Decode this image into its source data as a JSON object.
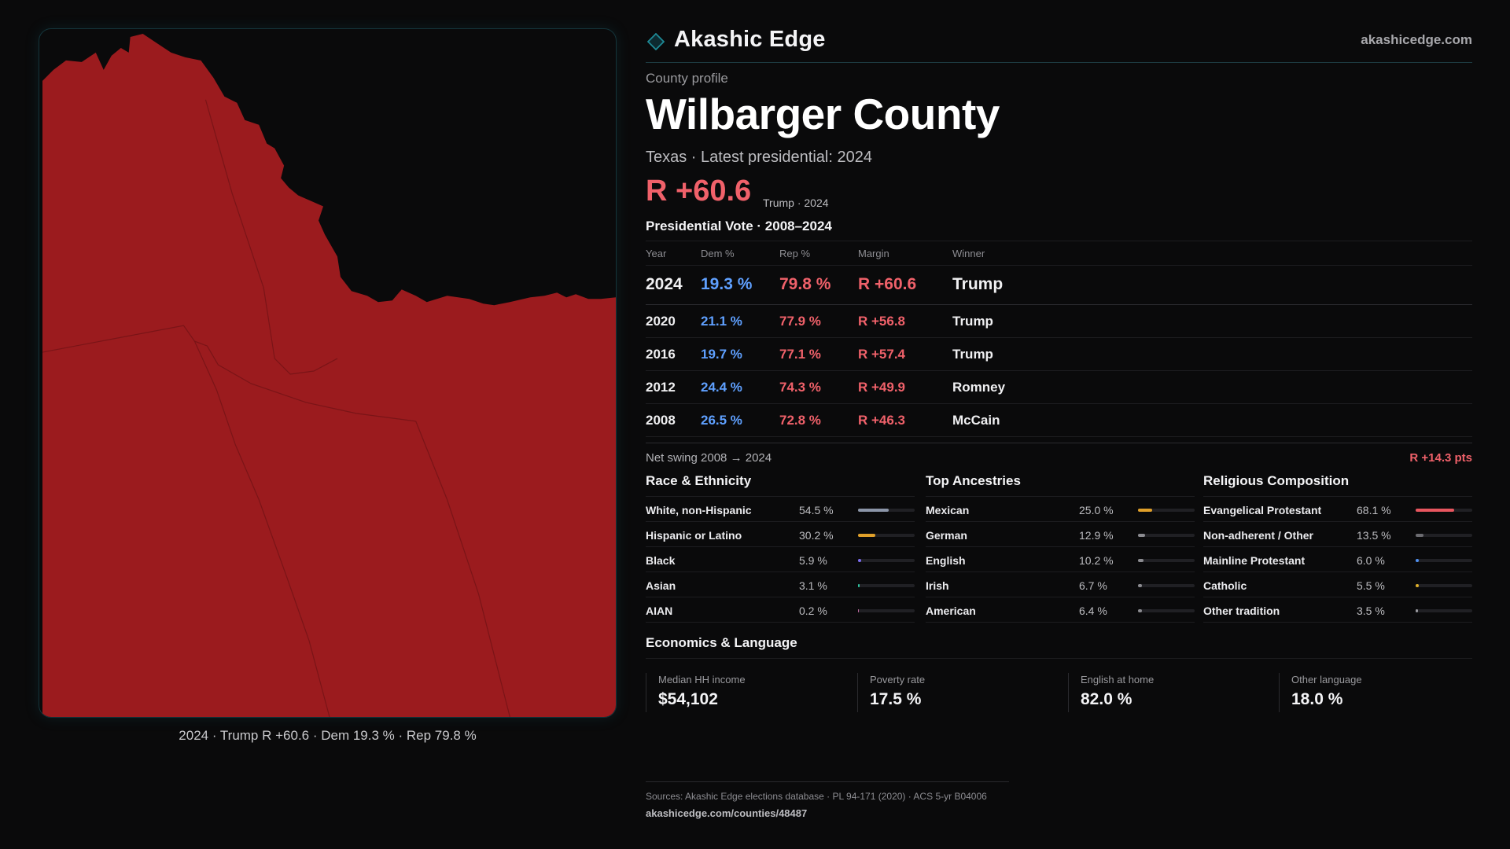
{
  "map": {
    "caption": "2024 · Trump R +60.6 · Dem 19.3 % · Rep 79.8 %",
    "fill_color": "#9b1b1e"
  },
  "header": {
    "brand": "Akashic Edge",
    "site": "akashicedge.com",
    "logo_icon": "diamond-icon"
  },
  "profile": {
    "kicker": "County profile",
    "title": "Wilbarger County",
    "subtitle": "Texas · Latest presidential: 2024",
    "margin": "R +60.6",
    "margin_note": "Trump · 2024"
  },
  "vote": {
    "section_title": "Presidential Vote · 2008–2024",
    "columns": [
      "Year",
      "Dem %",
      "Rep %",
      "Margin",
      "Winner"
    ],
    "rows": [
      {
        "year": "2024",
        "dem": "19.3 %",
        "rep": "79.8 %",
        "margin": "R +60.6",
        "winner": "Trump"
      },
      {
        "year": "2020",
        "dem": "21.1 %",
        "rep": "77.9 %",
        "margin": "R +56.8",
        "winner": "Trump"
      },
      {
        "year": "2016",
        "dem": "19.7 %",
        "rep": "77.1 %",
        "margin": "R +57.4",
        "winner": "Trump"
      },
      {
        "year": "2012",
        "dem": "24.4 %",
        "rep": "74.3 %",
        "margin": "R +49.9",
        "winner": "Romney"
      },
      {
        "year": "2008",
        "dem": "26.5 %",
        "rep": "72.8 %",
        "margin": "R +46.3",
        "winner": "McCain"
      }
    ],
    "swing_label": "Net swing 2008 → 2024",
    "swing_value": "R +14.3 pts",
    "dem_color": "#5fa0ff",
    "rep_color": "#f0616a"
  },
  "race": {
    "title": "Race & Ethnicity",
    "rows": [
      {
        "label": "White, non-Hispanic",
        "value": "54.5 %",
        "share": 0.545,
        "color": "#8b95a8"
      },
      {
        "label": "Hispanic or Latino",
        "value": "30.2 %",
        "share": 0.302,
        "color": "#e0a02a"
      },
      {
        "label": "Black",
        "value": "5.9 %",
        "share": 0.059,
        "color": "#7b6cf0"
      },
      {
        "label": "Asian",
        "value": "3.1 %",
        "share": 0.031,
        "color": "#2ec4a0"
      },
      {
        "label": "AIAN",
        "value": "0.2 %",
        "share": 0.002,
        "color": "#c06aa0"
      }
    ]
  },
  "ancestry": {
    "title": "Top Ancestries",
    "rows": [
      {
        "label": "Mexican",
        "value": "25.0 %",
        "share": 0.25,
        "color": "#e0a02a"
      },
      {
        "label": "German",
        "value": "12.9 %",
        "share": 0.129,
        "color": "#8b8b90"
      },
      {
        "label": "English",
        "value": "10.2 %",
        "share": 0.102,
        "color": "#8b8b90"
      },
      {
        "label": "Irish",
        "value": "6.7 %",
        "share": 0.067,
        "color": "#8b8b90"
      },
      {
        "label": "American",
        "value": "6.4 %",
        "share": 0.064,
        "color": "#8b8b90"
      }
    ]
  },
  "religion": {
    "title": "Religious Composition",
    "rows": [
      {
        "label": "Evangelical Protestant",
        "value": "68.1 %",
        "share": 0.681,
        "color": "#e8565f"
      },
      {
        "label": "Non-adherent / Other",
        "value": "13.5 %",
        "share": 0.135,
        "color": "#6b6b70"
      },
      {
        "label": "Mainline Protestant",
        "value": "6.0 %",
        "share": 0.06,
        "color": "#4f8ff0"
      },
      {
        "label": "Catholic",
        "value": "5.5 %",
        "share": 0.055,
        "color": "#e0b02a"
      },
      {
        "label": "Other tradition",
        "value": "3.5 %",
        "share": 0.035,
        "color": "#9a9aa0"
      }
    ]
  },
  "economics": {
    "title": "Economics & Language",
    "cards": [
      {
        "label": "Median HH income",
        "value": "$54,102"
      },
      {
        "label": "Poverty rate",
        "value": "17.5 %"
      },
      {
        "label": "English at home",
        "value": "82.0 %"
      },
      {
        "label": "Other language",
        "value": "18.0 %"
      }
    ]
  },
  "footer": {
    "sources": "Sources: Akashic Edge elections database · PL 94-171 (2020) · ACS 5-yr B04006",
    "url": "akashicedge.com/counties/48487"
  }
}
